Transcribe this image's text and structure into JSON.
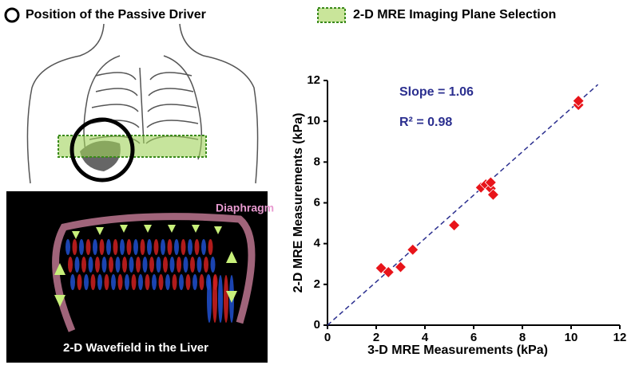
{
  "legend_items": [
    "Position of the Passive Driver",
    "2-D MRE Imaging Plane Selection"
  ],
  "image_labels": {
    "diaphragm": "Diaphragm",
    "wavefield": "2-D Wavefield in the Liver"
  },
  "chart_data": {
    "type": "scatter",
    "x_label": "3-D MRE Measurements (kPa)",
    "y_label": "2-D MRE Measurements (kPa)",
    "annotations": [
      "Slope = 1.06",
      "R² = 0.98"
    ],
    "x": [
      2.2,
      2.5,
      3.0,
      3.5,
      5.2,
      6.3,
      6.5,
      6.7,
      6.7,
      6.8,
      10.3,
      10.3
    ],
    "values": [
      2.8,
      2.6,
      2.85,
      3.7,
      4.9,
      6.75,
      6.9,
      6.7,
      7.0,
      6.4,
      10.8,
      11.0
    ],
    "color": "#e8141a",
    "fit_line": {
      "x": [
        0,
        11.1
      ],
      "y": [
        0,
        11.8
      ],
      "color": "#2b2f8f"
    },
    "xlim": [
      0,
      12
    ],
    "ylim": [
      0,
      12
    ],
    "xticks": [
      0,
      2,
      4,
      6,
      8,
      10,
      12
    ],
    "yticks": [
      0,
      2,
      4,
      6,
      8,
      10,
      12
    ]
  }
}
